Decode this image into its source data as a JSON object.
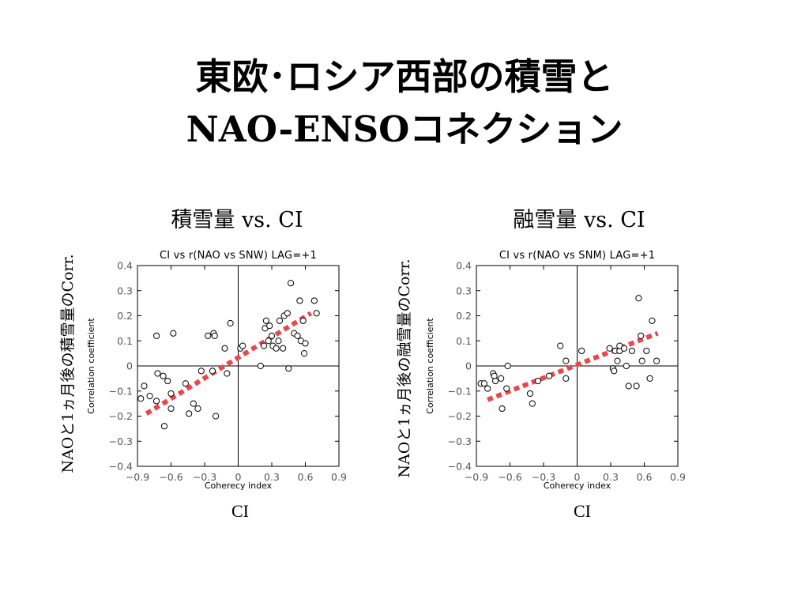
{
  "slide": {
    "title_line1": "東欧･ロシア西部の積雪と",
    "title_line2": "NAO-ENSOコネクション"
  },
  "panels": [
    {
      "heading": "積雪量 vs. CI",
      "side_label": "NAOと1ヵ月後の積雪量のCorr.",
      "under_label": "CI"
    },
    {
      "heading": "融雪量 vs. CI",
      "side_label": "NAOと1ヵ月後の融雪量のCorr.",
      "under_label": "CI"
    }
  ],
  "chart_data": [
    {
      "type": "scatter",
      "title": "CI vs r(NAO vs SNW) LAG=+1",
      "xlabel": "Coherecy index",
      "ylabel": "Correlation coefficient",
      "xlim": [
        -0.9,
        0.9
      ],
      "ylim": [
        -0.4,
        0.4
      ],
      "x_ticks": [
        "−0.9",
        "−0.6",
        "−0.3",
        "0",
        "0.3",
        "0.6",
        "0.9"
      ],
      "y_ticks": [
        "0.4",
        "0.3",
        "0.2",
        "0.1",
        "0",
        "−0.1",
        "−0.2",
        "−0.3",
        "−0.4"
      ],
      "zero_lines": true,
      "marker": "open-circle",
      "trend_color": "#e8474b",
      "trend_line": [
        [
          -0.82,
          -0.19
        ],
        [
          0.65,
          0.21
        ]
      ],
      "points": [
        [
          -0.87,
          -0.13
        ],
        [
          -0.84,
          -0.08
        ],
        [
          -0.79,
          -0.12
        ],
        [
          -0.73,
          0.12
        ],
        [
          -0.72,
          -0.03
        ],
        [
          -0.73,
          -0.14
        ],
        [
          -0.67,
          -0.04
        ],
        [
          -0.66,
          -0.24
        ],
        [
          -0.63,
          -0.06
        ],
        [
          -0.6,
          -0.11
        ],
        [
          -0.6,
          -0.17
        ],
        [
          -0.58,
          0.13
        ],
        [
          -0.47,
          -0.07
        ],
        [
          -0.44,
          -0.19
        ],
        [
          -0.4,
          -0.15
        ],
        [
          -0.36,
          -0.17
        ],
        [
          -0.33,
          -0.02
        ],
        [
          -0.27,
          0.12
        ],
        [
          -0.23,
          -0.02
        ],
        [
          -0.22,
          0.13
        ],
        [
          -0.21,
          0.12
        ],
        [
          -0.2,
          -0.2
        ],
        [
          -0.12,
          0.07
        ],
        [
          -0.1,
          -0.03
        ],
        [
          -0.07,
          0.17
        ],
        [
          0.02,
          0.07
        ],
        [
          0.04,
          0.08
        ],
        [
          0.2,
          0.0
        ],
        [
          0.23,
          0.08
        ],
        [
          0.24,
          0.15
        ],
        [
          0.25,
          0.18
        ],
        [
          0.27,
          0.1
        ],
        [
          0.28,
          0.16
        ],
        [
          0.3,
          0.12
        ],
        [
          0.31,
          0.08
        ],
        [
          0.34,
          0.07
        ],
        [
          0.36,
          0.1
        ],
        [
          0.37,
          0.18
        ],
        [
          0.4,
          0.07
        ],
        [
          0.41,
          0.2
        ],
        [
          0.44,
          0.21
        ],
        [
          0.45,
          -0.01
        ],
        [
          0.47,
          0.33
        ],
        [
          0.5,
          0.13
        ],
        [
          0.53,
          0.12
        ],
        [
          0.55,
          0.26
        ],
        [
          0.56,
          0.1
        ],
        [
          0.58,
          0.18
        ],
        [
          0.59,
          0.05
        ],
        [
          0.6,
          0.09
        ],
        [
          0.68,
          0.26
        ],
        [
          0.7,
          0.21
        ]
      ]
    },
    {
      "type": "scatter",
      "title": "CI vs r(NAO vs SNM) LAG=+1",
      "xlabel": "Coherecy index",
      "ylabel": "Correlation coefficient",
      "xlim": [
        -0.9,
        0.9
      ],
      "ylim": [
        -0.4,
        0.4
      ],
      "x_ticks": [
        "−0.9",
        "−0.6",
        "−0.3",
        "0",
        "0.3",
        "0.6",
        "0.9"
      ],
      "y_ticks": [
        "0.4",
        "0.3",
        "0.2",
        "0.1",
        "0",
        "−0.1",
        "−0.2",
        "−0.3",
        "−0.4"
      ],
      "zero_lines": true,
      "marker": "open-circle",
      "trend_color": "#e8474b",
      "trend_line": [
        [
          -0.8,
          -0.135
        ],
        [
          0.72,
          0.13
        ]
      ],
      "points": [
        [
          -0.86,
          -0.07
        ],
        [
          -0.83,
          -0.07
        ],
        [
          -0.8,
          -0.09
        ],
        [
          -0.75,
          -0.03
        ],
        [
          -0.74,
          -0.04
        ],
        [
          -0.73,
          -0.06
        ],
        [
          -0.68,
          -0.05
        ],
        [
          -0.67,
          -0.17
        ],
        [
          -0.63,
          -0.09
        ],
        [
          -0.62,
          0.0
        ],
        [
          -0.42,
          -0.11
        ],
        [
          -0.4,
          -0.15
        ],
        [
          -0.35,
          -0.06
        ],
        [
          -0.25,
          -0.04
        ],
        [
          -0.15,
          0.08
        ],
        [
          -0.1,
          0.02
        ],
        [
          -0.1,
          -0.05
        ],
        [
          0.04,
          0.06
        ],
        [
          0.29,
          0.07
        ],
        [
          0.32,
          -0.01
        ],
        [
          0.33,
          -0.02
        ],
        [
          0.34,
          0.06
        ],
        [
          0.36,
          0.02
        ],
        [
          0.38,
          0.06
        ],
        [
          0.38,
          0.08
        ],
        [
          0.42,
          0.07
        ],
        [
          0.44,
          0.0
        ],
        [
          0.46,
          -0.08
        ],
        [
          0.49,
          0.06
        ],
        [
          0.53,
          -0.08
        ],
        [
          0.55,
          0.27
        ],
        [
          0.57,
          0.12
        ],
        [
          0.58,
          0.02
        ],
        [
          0.62,
          0.06
        ],
        [
          0.65,
          -0.05
        ],
        [
          0.67,
          0.18
        ],
        [
          0.71,
          0.02
        ]
      ]
    }
  ]
}
